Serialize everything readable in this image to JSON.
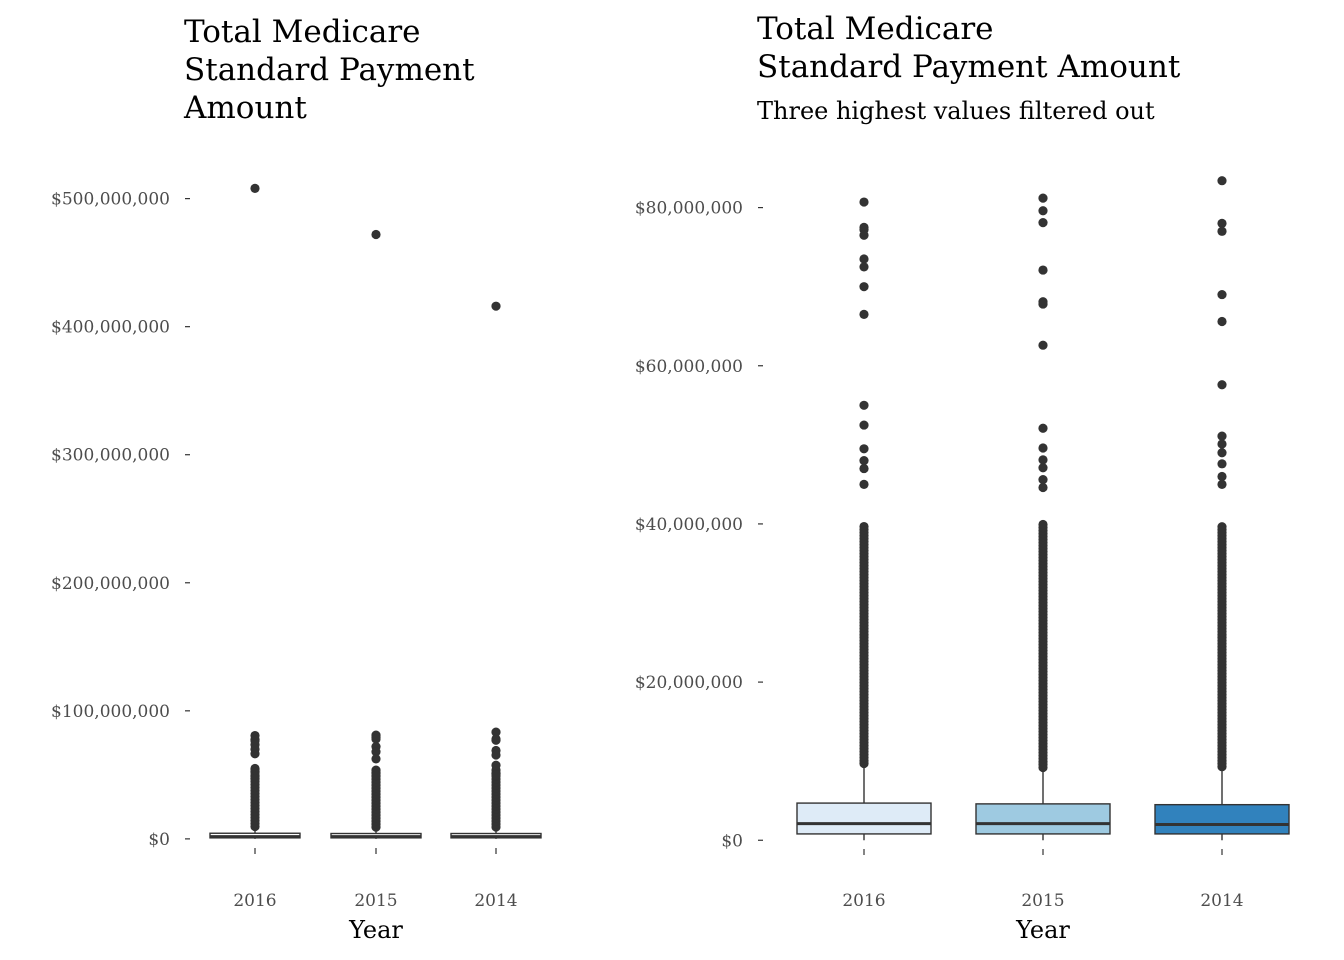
{
  "chart_data": [
    {
      "type": "box",
      "title": [
        "Total Medicare",
        "Standard Payment",
        "Amount"
      ],
      "subtitle": "",
      "xlabel": "Year",
      "ylabel": "",
      "categories": [
        "2016",
        "2015",
        "2014"
      ],
      "ylim": [
        -4000000,
        520000000
      ],
      "yticks": [
        0,
        100000000,
        200000000,
        300000000,
        400000000,
        500000000
      ],
      "ytick_labels": [
        "$0",
        "$100,000,000",
        "$200,000,000",
        "$300,000,000",
        "$400,000,000",
        "$500,000,000"
      ],
      "grid": false,
      "legend": "none",
      "fill_colors": [
        "#ffffff",
        "#ffffff",
        "#ffffff"
      ],
      "boxes": [
        {
          "category": "2016",
          "q1": 800000,
          "median": 1800000,
          "q3": 4400000,
          "whisker_low": 0,
          "whisker_high": 9700000,
          "outliers": [
            508000000,
            80700000,
            77500000,
            76500000,
            73500000,
            70000000,
            66500000,
            55000000,
            52500000,
            49000000,
            47000000
          ]
        },
        {
          "category": "2015",
          "q1": 800000,
          "median": 1800000,
          "q3": 4200000,
          "whisker_low": 0,
          "whisker_high": 9200000,
          "outliers": [
            472000000,
            81000000,
            79500000,
            78000000,
            72000000,
            68000000,
            62500000,
            52000000,
            49500000
          ]
        },
        {
          "category": "2014",
          "q1": 800000,
          "median": 1800000,
          "q3": 4200000,
          "whisker_low": 0,
          "whisker_high": 9300000,
          "outliers": [
            416000000,
            83400000,
            78000000,
            77000000,
            69000000,
            65500000,
            57500000,
            51000000,
            50000000
          ]
        }
      ]
    },
    {
      "type": "box",
      "title": [
        "Total Medicare",
        "Standard Payment Amount"
      ],
      "subtitle": "Three highest values filtered out",
      "xlabel": "Year",
      "ylabel": "",
      "categories": [
        "2016",
        "2015",
        "2014"
      ],
      "ylim": [
        -600000,
        84500000
      ],
      "yticks": [
        0,
        20000000,
        40000000,
        60000000,
        80000000
      ],
      "ytick_labels": [
        "$0",
        "$20,000,000",
        "$40,000,000",
        "$60,000,000",
        "$80,000,000"
      ],
      "grid": false,
      "legend": "none",
      "fill_colors": [
        "#deebf7",
        "#9ecae1",
        "#3182bd"
      ],
      "boxes": [
        {
          "category": "2016",
          "q1": 800000,
          "median": 2100000,
          "q3": 4700000,
          "whisker_low": 0,
          "whisker_high": 9700000,
          "outliers": [
            80700000,
            77500000,
            77200000,
            76500000,
            73500000,
            72500000,
            70000000,
            66500000,
            55000000,
            52500000,
            49500000,
            48000000,
            47000000,
            45000000
          ]
        },
        {
          "category": "2015",
          "q1": 800000,
          "median": 2100000,
          "q3": 4600000,
          "whisker_low": 0,
          "whisker_high": 9200000,
          "outliers": [
            81200000,
            79600000,
            78100000,
            72100000,
            68100000,
            67800000,
            62600000,
            52100000,
            49600000,
            48100000,
            47100000,
            45600000,
            44600000
          ]
        },
        {
          "category": "2014",
          "q1": 800000,
          "median": 2000000,
          "q3": 4500000,
          "whisker_low": 0,
          "whisker_high": 9300000,
          "outliers": [
            83400000,
            78000000,
            77000000,
            69000000,
            65600000,
            57600000,
            51100000,
            50100000,
            49000000,
            47600000,
            46000000,
            45000000
          ]
        }
      ]
    }
  ]
}
